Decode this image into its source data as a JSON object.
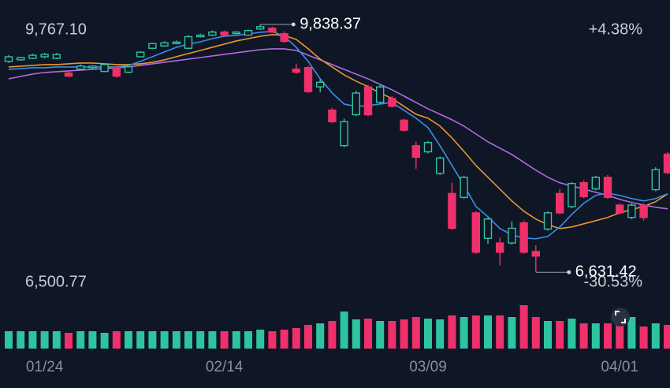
{
  "chart_data": {
    "type": "candlestick",
    "categories": [
      null,
      null,
      null,
      "01/24",
      null,
      null,
      null,
      null,
      null,
      null,
      null,
      null,
      null,
      null,
      null,
      null,
      null,
      null,
      "02/14",
      null,
      null,
      null,
      null,
      null,
      null,
      null,
      null,
      null,
      null,
      null,
      null,
      null,
      null,
      null,
      null,
      "03/09",
      null,
      null,
      null,
      null,
      null,
      null,
      null,
      null,
      null,
      null,
      null,
      null,
      null,
      null,
      null,
      "04/01",
      null,
      null,
      null,
      null
    ],
    "open": [
      9420,
      9410,
      9440,
      9450,
      9450,
      9170,
      9300,
      9300,
      9320,
      9170,
      9290,
      9480,
      9590,
      9600,
      9610,
      9680,
      9700,
      9740,
      9700,
      9740,
      9760,
      9810,
      9740,
      9620,
      9220,
      8970,
      9090,
      8580,
      8580,
      8950,
      8670,
      9030,
      8780,
      8470,
      8120,
      8310,
      8110,
      7200,
      7860,
      6890,
      7320,
      6890,
      7200,
      6890,
      6840,
      7400,
      7400,
      7780,
      7610,
      7860,
      7600,
      7400,
      7500,
      7340,
      7960,
      7920
    ],
    "high": [
      9440,
      9420,
      9460,
      9470,
      9470,
      9230,
      9320,
      9310,
      9330,
      9300,
      9300,
      9490,
      9600,
      9620,
      9630,
      9700,
      9720,
      9760,
      9760,
      9750,
      9770,
      9838.37,
      9810,
      9750,
      9330,
      9300,
      9130,
      8760,
      8620,
      8980,
      9060,
      9060,
      8910,
      8620,
      8320,
      8330,
      8130,
      7790,
      7880,
      7420,
      7340,
      7080,
      7290,
      7300,
      6980,
      7420,
      7710,
      7800,
      7820,
      7880,
      7890,
      7520,
      7520,
      7520,
      7990,
      8190
    ],
    "low": [
      9340,
      9370,
      9390,
      9400,
      9390,
      9160,
      9250,
      9260,
      9220,
      9150,
      9210,
      9410,
      9520,
      9550,
      9580,
      9520,
      9670,
      9690,
      9690,
      9710,
      9690,
      9770,
      9730,
      9600,
      9200,
      8950,
      8960,
      8560,
      8250,
      8650,
      8650,
      8810,
      8760,
      8450,
      7970,
      8170,
      7890,
      7180,
      7580,
      6870,
      7000,
      6720,
      6990,
      6870,
      6631.42,
      7170,
      7380,
      7460,
      7590,
      7690,
      7580,
      7380,
      7320,
      7300,
      7680,
      7900
    ],
    "close": [
      9360,
      9380,
      9400,
      9420,
      9400,
      9210,
      9260,
      9280,
      9230,
      9280,
      9220,
      9420,
      9530,
      9560,
      9590,
      9530,
      9680,
      9700,
      9740,
      9720,
      9700,
      9780,
      9790,
      9720,
      9260,
      9280,
      9030,
      8730,
      8270,
      8670,
      9030,
      8830,
      8880,
      8600,
      8270,
      8190,
      7910,
      7650,
      7600,
      7400,
      7070,
      7010,
      7010,
      7270,
      6900,
      7190,
      7650,
      7480,
      7790,
      7710,
      7860,
      7500,
      7340,
      7500,
      7700,
      8160
    ],
    "up_color": "#f0306a",
    "down_color": "#2ec4a0",
    "moving_averages": [
      {
        "color": "#b26ae0",
        "values": [
          9135,
          9166,
          9196,
          9217,
          9227,
          9237,
          9247,
          9257,
          9268,
          9278,
          9288,
          9308,
          9329,
          9349,
          9370,
          9390,
          9410,
          9431,
          9451,
          9472,
          9492,
          9512,
          9523,
          9523,
          9502,
          9441,
          9380,
          9319,
          9257,
          9196,
          9135,
          9063,
          8992,
          8911,
          8829,
          8747,
          8676,
          8605,
          8523,
          8421,
          8319,
          8237,
          8155,
          8054,
          7952,
          7860,
          7789,
          7748,
          7707,
          7666,
          7626,
          7575,
          7534,
          7503,
          7472,
          7452
        ]
      },
      {
        "color": "#e8962e",
        "values": [
          9288,
          9298,
          9308,
          9319,
          9319,
          9329,
          9339,
          9339,
          9329,
          9319,
          9319,
          9329,
          9349,
          9380,
          9421,
          9462,
          9502,
          9543,
          9584,
          9625,
          9655,
          9686,
          9706,
          9696,
          9645,
          9523,
          9390,
          9288,
          9186,
          9104,
          9033,
          8951,
          8880,
          8778,
          8676,
          8625,
          8523,
          8370,
          8196,
          8013,
          7860,
          7707,
          7554,
          7421,
          7319,
          7248,
          7197,
          7217,
          7258,
          7299,
          7340,
          7401,
          7442,
          7483,
          7544,
          7646
        ]
      },
      {
        "color": "#3a8ee6",
        "values": [
          9257,
          9268,
          9278,
          9278,
          9288,
          9288,
          9288,
          9288,
          9288,
          9288,
          9308,
          9360,
          9421,
          9482,
          9543,
          9584,
          9614,
          9655,
          9686,
          9696,
          9716,
          9737,
          9747,
          9686,
          9543,
          9360,
          9135,
          8951,
          8808,
          8778,
          8788,
          8808,
          8829,
          8727,
          8625,
          8503,
          8268,
          8013,
          7758,
          7483,
          7350,
          7197,
          7115,
          7075,
          7064,
          7095,
          7217,
          7381,
          7524,
          7626,
          7656,
          7626,
          7585,
          7554,
          7585,
          7646
        ]
      }
    ],
    "volume": {
      "values": [
        22,
        22,
        22,
        22,
        22,
        20,
        22,
        22,
        20,
        22,
        22,
        22,
        22,
        22,
        22,
        22,
        22,
        22,
        22,
        22,
        22,
        24,
        22,
        24,
        26,
        30,
        32,
        35,
        47,
        37,
        38,
        35,
        35,
        37,
        40,
        38,
        37,
        42,
        40,
        42,
        42,
        42,
        40,
        55,
        40,
        35,
        35,
        38,
        32,
        32,
        32,
        30,
        40,
        28,
        32,
        30
      ],
      "ylim": [
        0,
        60
      ]
    },
    "ylim": [
      6500.77,
      9767.1
    ],
    "yticks": [
      {
        "value": 9767.1,
        "label": "9,767.10"
      },
      {
        "value": 6500.77,
        "label": "6,500.77"
      }
    ],
    "y2lim": [
      -30.53,
      4.38
    ],
    "y2ticks": [
      {
        "value": 4.38,
        "label": "+4.38%"
      },
      {
        "value": -30.53,
        "label": "-30.53%"
      }
    ],
    "max_label": {
      "value": 9838.37,
      "label": "9,838.37"
    },
    "min_label": {
      "value": 6631.42,
      "label": "6,631.42"
    }
  }
}
